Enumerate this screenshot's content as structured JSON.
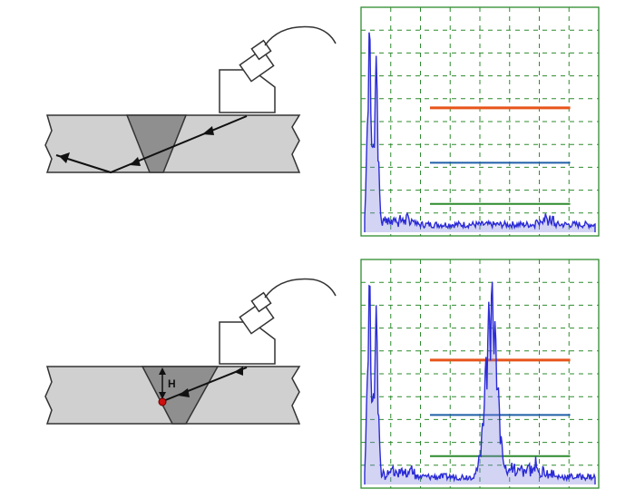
{
  "figure": {
    "panels": [
      {
        "id": "no-defect",
        "defect": false,
        "defect_label": "",
        "scope": {
          "reference_lines": [
            {
              "color": "#e8541a"
            },
            {
              "color": "#1f5fa8"
            },
            {
              "color": "#2e8b2e"
            }
          ],
          "echo_peaks": [
            {
              "position": 0.02,
              "height": 0.93
            },
            {
              "position": 0.05,
              "height": 0.78
            }
          ]
        }
      },
      {
        "id": "with-defect",
        "defect": true,
        "defect_label": "H",
        "scope": {
          "reference_lines": [
            {
              "color": "#e8541a"
            },
            {
              "color": "#1f5fa8"
            },
            {
              "color": "#2e8b2e"
            }
          ],
          "echo_peaks": [
            {
              "position": 0.02,
              "height": 0.93
            },
            {
              "position": 0.05,
              "height": 0.78
            },
            {
              "position": 0.55,
              "height": 0.9
            }
          ]
        }
      }
    ],
    "colors": {
      "plate": "#d0d0d0",
      "weld": "#8f8f8f",
      "signal": "#2b2bd6",
      "grid": "#2e8b2e",
      "defect": "#cc1111"
    }
  }
}
